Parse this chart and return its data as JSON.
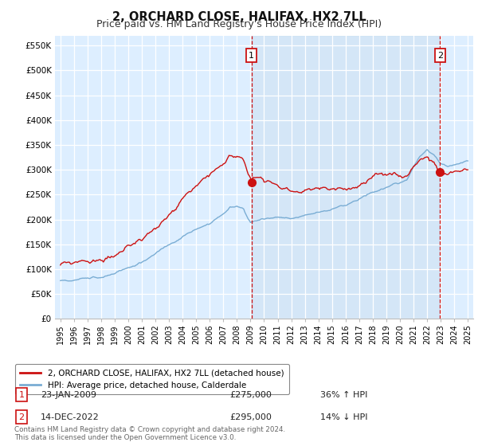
{
  "title": "2, ORCHARD CLOSE, HALIFAX, HX2 7LL",
  "subtitle": "Price paid vs. HM Land Registry's House Price Index (HPI)",
  "title_fontsize": 10.5,
  "subtitle_fontsize": 9,
  "hpi_color": "#7aadd4",
  "price_color": "#cc1111",
  "dashed_line_color": "#cc1111",
  "background_color": "#ffffff",
  "chart_bg_color": "#ddeeff",
  "grid_color": "#ffffff",
  "legend_label_price": "2, ORCHARD CLOSE, HALIFAX, HX2 7LL (detached house)",
  "legend_label_hpi": "HPI: Average price, detached house, Calderdale",
  "sale1_date": "23-JAN-2009",
  "sale1_price": "£275,000",
  "sale1_hpi": "36% ↑ HPI",
  "sale1_x": 2009.07,
  "sale1_y": 275000,
  "sale2_date": "14-DEC-2022",
  "sale2_price": "£295,000",
  "sale2_hpi": "14% ↓ HPI",
  "sale2_x": 2022.96,
  "sale2_y": 295000,
  "ylim": [
    0,
    570000
  ],
  "yticks": [
    0,
    50000,
    100000,
    150000,
    200000,
    250000,
    300000,
    350000,
    400000,
    450000,
    500000,
    550000
  ],
  "ytick_labels": [
    "£0",
    "£50K",
    "£100K",
    "£150K",
    "£200K",
    "£250K",
    "£300K",
    "£350K",
    "£400K",
    "£450K",
    "£500K",
    "£550K"
  ],
  "footer": "Contains HM Land Registry data © Crown copyright and database right 2024.\nThis data is licensed under the Open Government Licence v3.0.",
  "xtick_years": [
    1995,
    1996,
    1997,
    1998,
    1999,
    2000,
    2001,
    2002,
    2003,
    2004,
    2005,
    2006,
    2007,
    2008,
    2009,
    2010,
    2011,
    2012,
    2013,
    2014,
    2015,
    2016,
    2017,
    2018,
    2019,
    2020,
    2021,
    2022,
    2023,
    2024,
    2025
  ]
}
